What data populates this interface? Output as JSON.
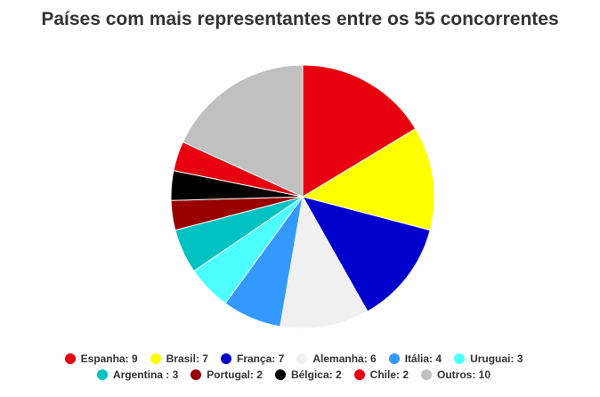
{
  "chart_data": {
    "type": "pie",
    "title": "Países com mais representantes entre os 55 concorrentes",
    "slices": [
      {
        "label": "Espanha",
        "value": 9,
        "color": "#e8000e"
      },
      {
        "label": "Brasil",
        "value": 7,
        "color": "#ffff00"
      },
      {
        "label": "França",
        "value": 7,
        "color": "#0000cc"
      },
      {
        "label": "Alemanha",
        "value": 6,
        "color": "#f0f0f0"
      },
      {
        "label": "Itália",
        "value": 4,
        "color": "#3399ff"
      },
      {
        "label": "Uruguai",
        "value": 3,
        "color": "#4dffff"
      },
      {
        "label": "Argentina ",
        "value": 3,
        "color": "#00c2c2"
      },
      {
        "label": "Portugal",
        "value": 2,
        "color": "#990000"
      },
      {
        "label": "Bélgica",
        "value": 2,
        "color": "#000000"
      },
      {
        "label": "Chile",
        "value": 2,
        "color": "#e8000e"
      },
      {
        "label": "Outros",
        "value": 10,
        "color": "#c0c0c0"
      }
    ],
    "legend_position": "bottom"
  },
  "legend": {
    "items": [
      {
        "text": "Espanha: 9"
      },
      {
        "text": "Brasil: 7"
      },
      {
        "text": "França: 7"
      },
      {
        "text": "Alemanha: 6"
      },
      {
        "text": "Itália: 4"
      },
      {
        "text": "Uruguai: 3"
      },
      {
        "text": "Argentina : 3"
      },
      {
        "text": "Portugal: 2"
      },
      {
        "text": "Bélgica: 2"
      },
      {
        "text": "Chile: 2"
      },
      {
        "text": "Outros: 10"
      }
    ]
  }
}
